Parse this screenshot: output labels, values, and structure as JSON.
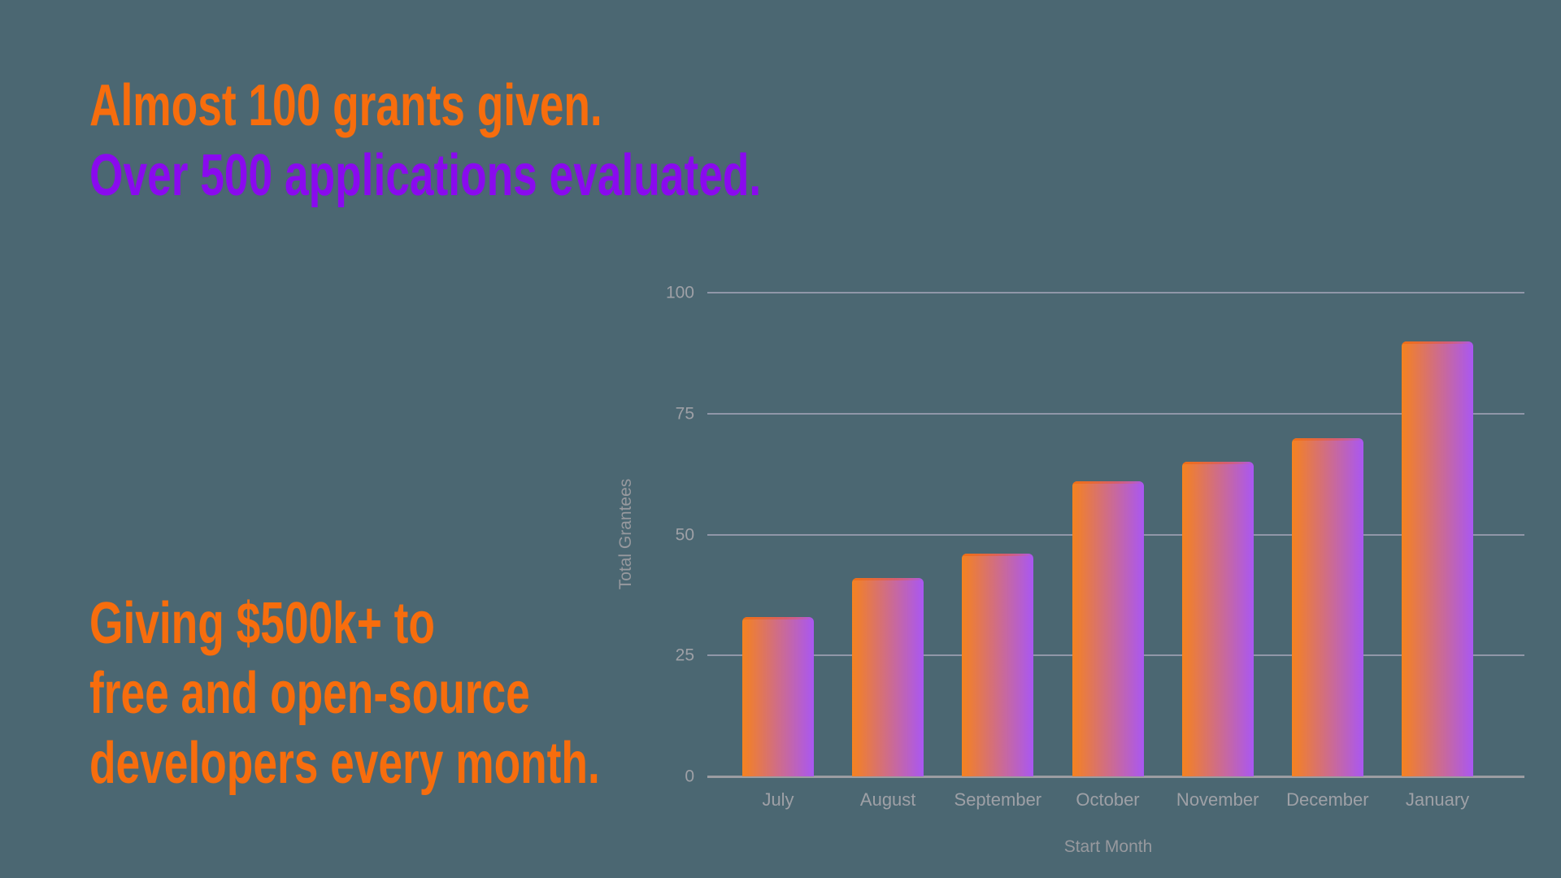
{
  "page": {
    "background_color": "#4B6772"
  },
  "hero": {
    "line1": "Almost 100 grants given.",
    "line2": "Over 500 applications evaluated.",
    "line1_color": "#F76D0D",
    "line2_color": "#8A0AEE"
  },
  "footer_text": {
    "line1": "Giving $500k+ to",
    "line2": "free and open-source",
    "line3": "developers every month.",
    "color": "#F76D0D"
  },
  "chart_data": {
    "type": "bar",
    "title": "",
    "categories": [
      "July",
      "August",
      "September",
      "October",
      "November",
      "December",
      "January"
    ],
    "values": [
      33,
      41,
      46,
      61,
      65,
      70,
      90
    ],
    "xlabel": "Start Month",
    "ylabel": "Total Grantees",
    "ylim": [
      0,
      100
    ],
    "yticks": [
      0,
      25,
      50,
      75,
      100
    ],
    "grid": true,
    "legend": false,
    "bar_gradient_from": "#F5821F",
    "bar_gradient_to": "#A957F2",
    "gridline_color": "rgba(190,183,205,0.6)",
    "baseline_color": "#9C9DA2",
    "tick_text_color": "#9EA0A6",
    "axis_title_color": "#97999E"
  }
}
